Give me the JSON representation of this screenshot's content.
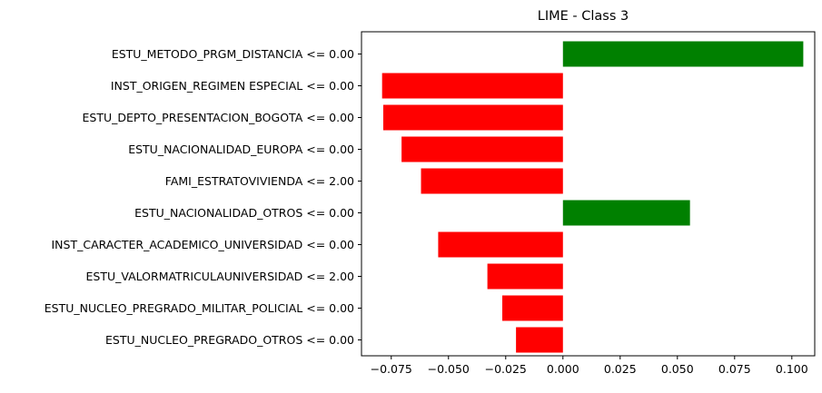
{
  "chart_data": {
    "type": "bar",
    "orientation": "horizontal",
    "title": "LIME - Class 3",
    "xlabel": "",
    "ylabel": "",
    "xlim": [
      -0.088,
      0.11
    ],
    "grid": false,
    "legend": "none",
    "categories": [
      "ESTU_METODO_PRGM_DISTANCIA <= 0.00",
      "INST_ORIGEN_REGIMEN ESPECIAL <= 0.00",
      "ESTU_DEPTO_PRESENTACION_BOGOTA <= 0.00",
      "ESTU_NACIONALIDAD_EUROPA <= 0.00",
      "FAMI_ESTRATOVIVIENDA <= 2.00",
      "ESTU_NACIONALIDAD_OTROS <= 0.00",
      "INST_CARACTER_ACADEMICO_UNIVERSIDAD <= 0.00",
      "ESTU_VALORMATRICULAUNIVERSIDAD <= 2.00",
      "ESTU_NUCLEO_PREGRADO_MILITAR_POLICIAL <= 0.00",
      "ESTU_NUCLEO_PREGRADO_OTROS <= 0.00"
    ],
    "values": [
      0.105,
      -0.079,
      -0.0785,
      -0.0705,
      -0.062,
      0.0555,
      -0.0545,
      -0.033,
      -0.0265,
      -0.0205
    ],
    "xticks": [
      -0.075,
      -0.05,
      -0.025,
      0.0,
      0.025,
      0.05,
      0.075,
      0.1
    ],
    "xtick_labels": [
      "−0.075",
      "−0.050",
      "−0.025",
      "0.000",
      "0.025",
      "0.050",
      "0.075",
      "0.100"
    ],
    "colors": {
      "positive": "#008000",
      "negative": "#ff0000",
      "axis": "#000000"
    }
  }
}
